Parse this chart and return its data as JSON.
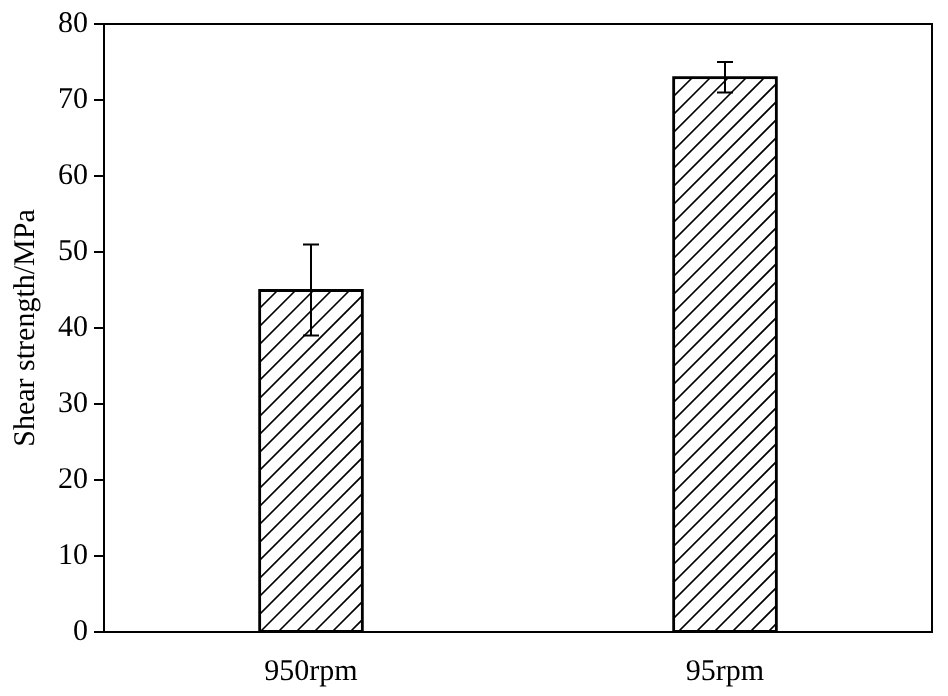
{
  "chart_data": {
    "type": "bar",
    "ylabel": "Shear strength/MPa",
    "categories": [
      "950rpm",
      "95rpm"
    ],
    "values": [
      45,
      73
    ],
    "errors": [
      6,
      2
    ],
    "color": "#ffffff",
    "ylim": [
      0,
      80
    ],
    "yticks": [
      0,
      10,
      20,
      30,
      40,
      50,
      60,
      70,
      80
    ]
  }
}
